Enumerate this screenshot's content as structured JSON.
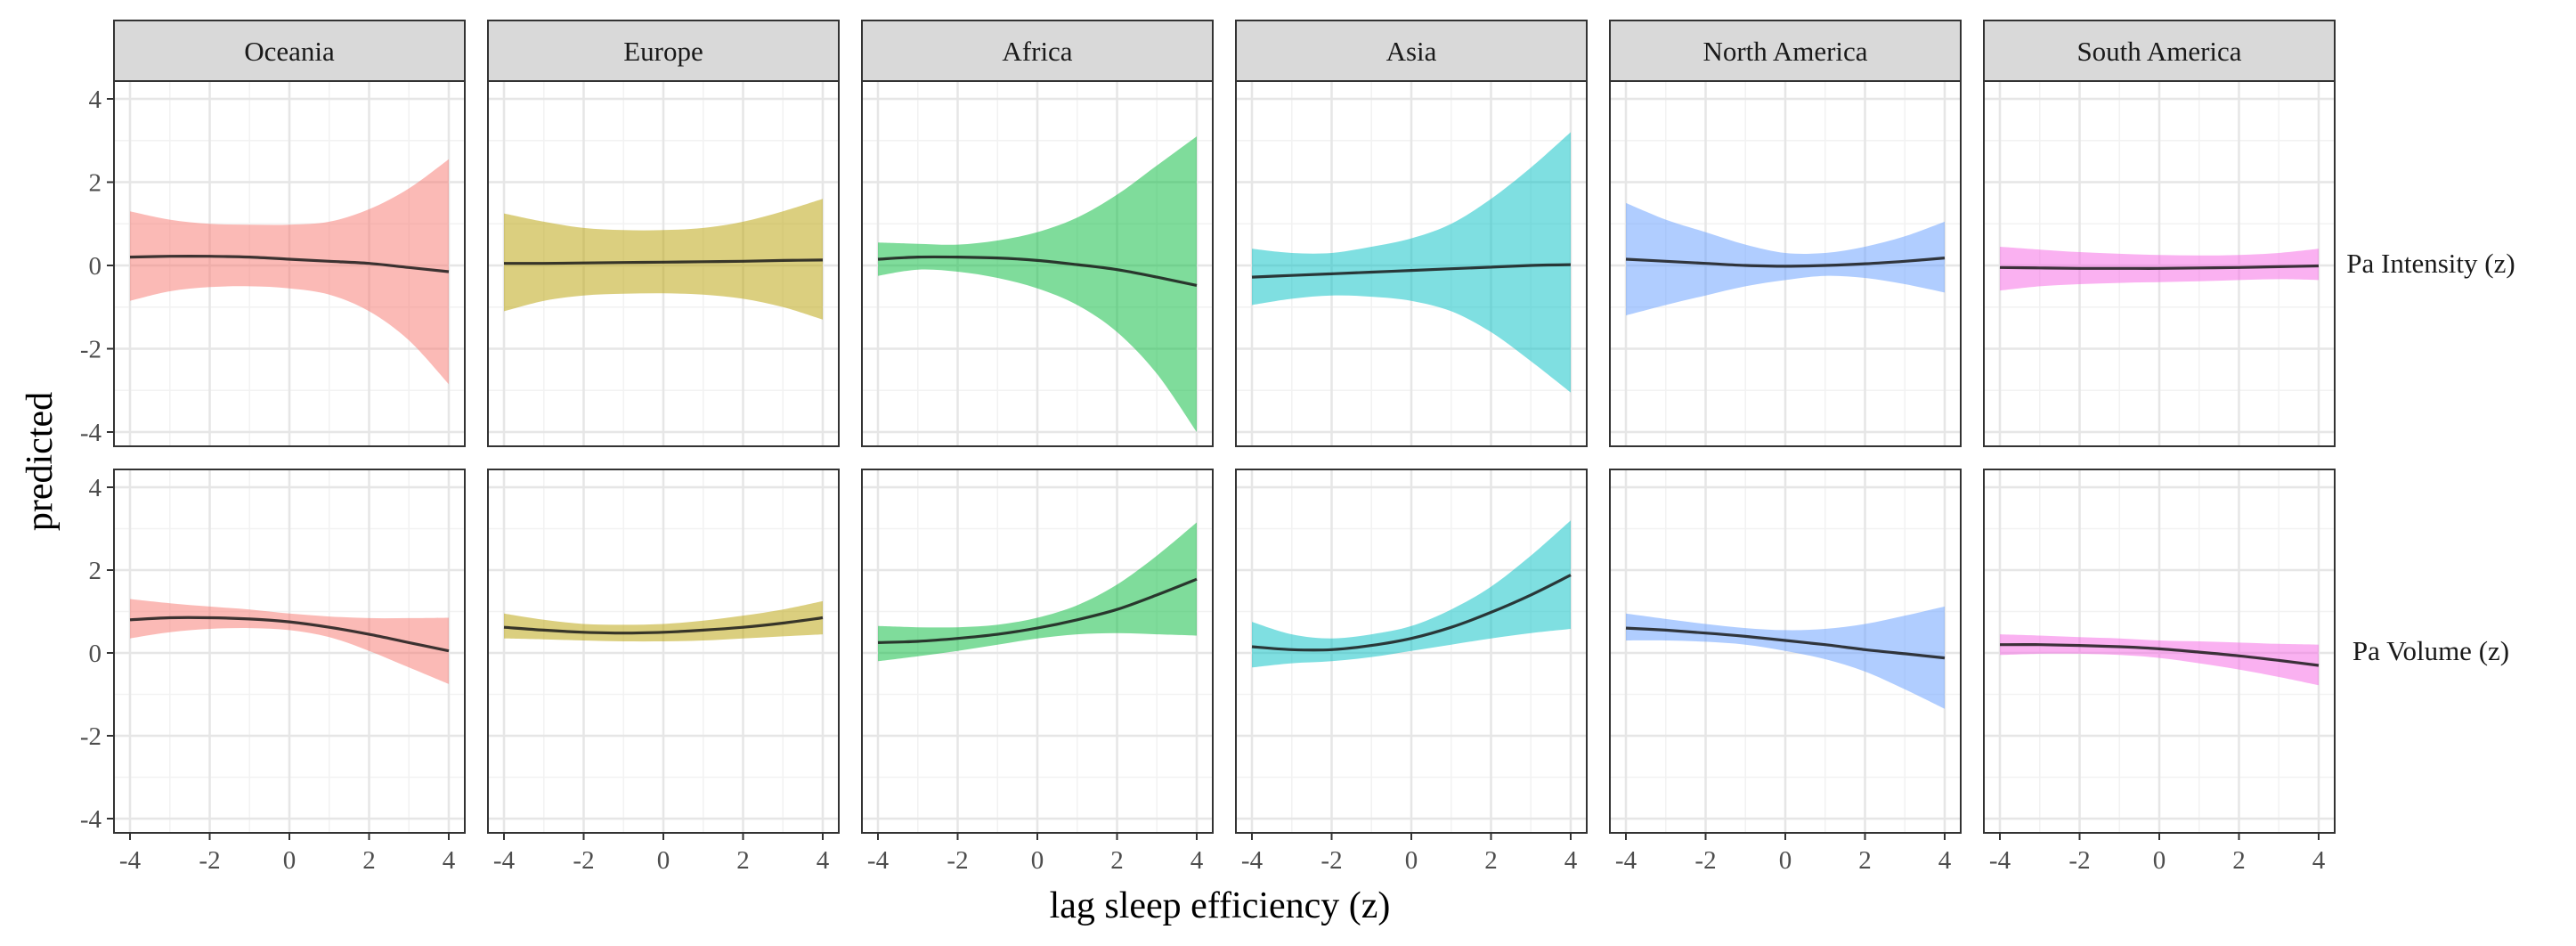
{
  "chart_data": {
    "type": "line",
    "xlabel": "lag sleep efficiency (z)",
    "ylabel": "predicted",
    "xlim": [
      -4,
      4
    ],
    "ylim": [
      -4,
      4
    ],
    "x_ticks": [
      -4,
      -2,
      0,
      2,
      4
    ],
    "y_ticks": [
      -4,
      -2,
      0,
      2,
      4
    ],
    "grid": true,
    "columns": [
      "Oceania",
      "Europe",
      "Africa",
      "Asia",
      "North America",
      "South America"
    ],
    "rows": [
      "Pa Intensity (z)",
      "Pa Volume (z)"
    ],
    "colors": {
      "Oceania": "#F8766D",
      "Europe": "#B79F00",
      "Africa": "#00BA38",
      "Asia": "#00BFC4",
      "North America": "#619CFF",
      "South America": "#F564E3"
    },
    "x": [
      -4,
      -3,
      -2,
      -1,
      0,
      1,
      2,
      3,
      4
    ],
    "panels": [
      {
        "row": "Pa Intensity (z)",
        "column": "Oceania",
        "fit": [
          0.2,
          0.22,
          0.22,
          0.2,
          0.15,
          0.1,
          0.05,
          -0.05,
          -0.15
        ],
        "lower": [
          -0.85,
          -0.62,
          -0.52,
          -0.5,
          -0.55,
          -0.7,
          -1.1,
          -1.8,
          -2.85
        ],
        "upper": [
          1.3,
          1.1,
          1.0,
          0.98,
          0.98,
          1.05,
          1.35,
          1.85,
          2.55
        ]
      },
      {
        "row": "Pa Intensity (z)",
        "column": "Europe",
        "fit": [
          0.05,
          0.05,
          0.06,
          0.07,
          0.08,
          0.09,
          0.1,
          0.12,
          0.13
        ],
        "lower": [
          -1.1,
          -0.85,
          -0.72,
          -0.68,
          -0.67,
          -0.7,
          -0.8,
          -1.0,
          -1.3
        ],
        "upper": [
          1.25,
          1.05,
          0.9,
          0.85,
          0.85,
          0.9,
          1.05,
          1.3,
          1.6
        ]
      },
      {
        "row": "Pa Intensity (z)",
        "column": "Africa",
        "fit": [
          0.15,
          0.2,
          0.2,
          0.18,
          0.12,
          0.02,
          -0.1,
          -0.28,
          -0.48
        ],
        "lower": [
          -0.25,
          -0.1,
          -0.15,
          -0.3,
          -0.55,
          -0.95,
          -1.6,
          -2.6,
          -4.0
        ],
        "upper": [
          0.55,
          0.52,
          0.5,
          0.6,
          0.8,
          1.15,
          1.7,
          2.4,
          3.1
        ]
      },
      {
        "row": "Pa Intensity (z)",
        "column": "Asia",
        "fit": [
          -0.28,
          -0.24,
          -0.2,
          -0.16,
          -0.12,
          -0.08,
          -0.04,
          0.0,
          0.02
        ],
        "lower": [
          -0.95,
          -0.8,
          -0.72,
          -0.75,
          -0.85,
          -1.1,
          -1.6,
          -2.3,
          -3.05
        ],
        "upper": [
          0.4,
          0.3,
          0.3,
          0.45,
          0.65,
          1.0,
          1.6,
          2.35,
          3.2
        ]
      },
      {
        "row": "Pa Intensity (z)",
        "column": "North America",
        "fit": [
          0.15,
          0.1,
          0.05,
          0.0,
          -0.02,
          0.0,
          0.04,
          0.1,
          0.18
        ],
        "lower": [
          -1.2,
          -0.95,
          -0.72,
          -0.5,
          -0.35,
          -0.25,
          -0.3,
          -0.45,
          -0.65
        ],
        "upper": [
          1.5,
          1.1,
          0.8,
          0.5,
          0.3,
          0.3,
          0.45,
          0.7,
          1.05
        ]
      },
      {
        "row": "Pa Intensity (z)",
        "column": "South America",
        "fit": [
          -0.05,
          -0.06,
          -0.07,
          -0.07,
          -0.07,
          -0.06,
          -0.05,
          -0.03,
          -0.01
        ],
        "lower": [
          -0.6,
          -0.5,
          -0.45,
          -0.42,
          -0.4,
          -0.38,
          -0.35,
          -0.33,
          -0.35
        ],
        "upper": [
          0.45,
          0.38,
          0.32,
          0.28,
          0.25,
          0.24,
          0.25,
          0.3,
          0.4
        ]
      },
      {
        "row": "Pa Volume (z)",
        "column": "Oceania",
        "fit": [
          0.8,
          0.85,
          0.85,
          0.82,
          0.75,
          0.62,
          0.45,
          0.25,
          0.05
        ],
        "lower": [
          0.35,
          0.5,
          0.58,
          0.6,
          0.55,
          0.38,
          0.05,
          -0.35,
          -0.75
        ],
        "upper": [
          1.3,
          1.2,
          1.12,
          1.05,
          0.95,
          0.88,
          0.84,
          0.84,
          0.85
        ]
      },
      {
        "row": "Pa Volume (z)",
        "column": "Europe",
        "fit": [
          0.62,
          0.55,
          0.5,
          0.48,
          0.5,
          0.55,
          0.62,
          0.72,
          0.85
        ],
        "lower": [
          0.35,
          0.33,
          0.3,
          0.28,
          0.28,
          0.3,
          0.35,
          0.4,
          0.45
        ],
        "upper": [
          0.95,
          0.8,
          0.7,
          0.68,
          0.7,
          0.78,
          0.9,
          1.05,
          1.25
        ]
      },
      {
        "row": "Pa Volume (z)",
        "column": "Africa",
        "fit": [
          0.25,
          0.28,
          0.35,
          0.45,
          0.6,
          0.8,
          1.05,
          1.4,
          1.78
        ],
        "lower": [
          -0.2,
          -0.08,
          0.05,
          0.2,
          0.35,
          0.45,
          0.48,
          0.45,
          0.42
        ],
        "upper": [
          0.65,
          0.62,
          0.62,
          0.68,
          0.85,
          1.15,
          1.65,
          2.35,
          3.15
        ]
      },
      {
        "row": "Pa Volume (z)",
        "column": "Asia",
        "fit": [
          0.15,
          0.08,
          0.08,
          0.18,
          0.35,
          0.62,
          0.98,
          1.4,
          1.88
        ],
        "lower": [
          -0.35,
          -0.25,
          -0.2,
          -0.1,
          0.05,
          0.2,
          0.35,
          0.48,
          0.58
        ],
        "upper": [
          0.75,
          0.45,
          0.35,
          0.45,
          0.65,
          1.05,
          1.6,
          2.35,
          3.2
        ]
      },
      {
        "row": "Pa Volume (z)",
        "column": "North America",
        "fit": [
          0.6,
          0.55,
          0.48,
          0.4,
          0.3,
          0.2,
          0.08,
          -0.02,
          -0.12
        ],
        "lower": [
          0.3,
          0.3,
          0.27,
          0.2,
          0.05,
          -0.15,
          -0.45,
          -0.88,
          -1.35
        ],
        "upper": [
          0.95,
          0.82,
          0.7,
          0.6,
          0.55,
          0.58,
          0.7,
          0.9,
          1.12
        ]
      },
      {
        "row": "Pa Volume (z)",
        "column": "South America",
        "fit": [
          0.2,
          0.2,
          0.18,
          0.15,
          0.1,
          0.02,
          -0.07,
          -0.18,
          -0.3
        ],
        "lower": [
          -0.05,
          -0.02,
          -0.02,
          -0.05,
          -0.12,
          -0.25,
          -0.4,
          -0.58,
          -0.78
        ],
        "upper": [
          0.45,
          0.42,
          0.38,
          0.35,
          0.3,
          0.28,
          0.25,
          0.22,
          0.2
        ]
      }
    ]
  }
}
